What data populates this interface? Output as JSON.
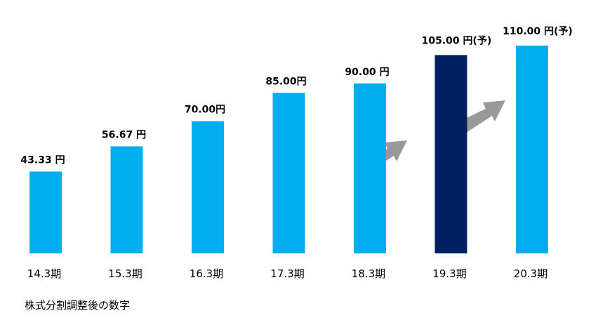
{
  "chart_data": {
    "type": "bar",
    "categories": [
      "14.3期",
      "15.3期",
      "16.3期",
      "17.3期",
      "18.3期",
      "19.3期",
      "20.3期"
    ],
    "values": [
      43.33,
      56.67,
      70,
      85,
      90,
      105,
      110
    ],
    "value_labels": [
      "43.33 円",
      "56.67 円",
      "70.00円",
      "85.00円",
      "90.00 円",
      "105.00 円(予)",
      "110.00 円(予)"
    ],
    "colors": [
      "#00aeef",
      "#00aeef",
      "#00aeef",
      "#00aeef",
      "#00aeef",
      "#002060",
      "#00aeef"
    ],
    "note": "株式分割調整後の数字"
  }
}
